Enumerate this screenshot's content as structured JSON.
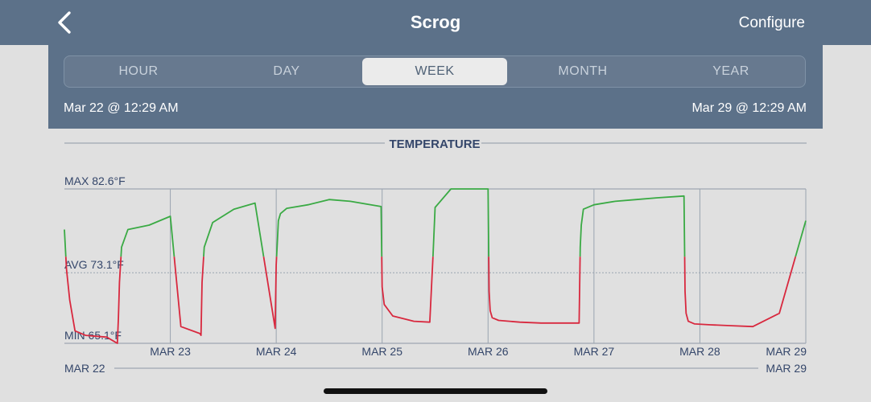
{
  "navbar": {
    "title": "Scrog",
    "configure_label": "Configure",
    "back_icon": "chevron-left-icon"
  },
  "range_tabs": [
    {
      "label": "HOUR",
      "active": false
    },
    {
      "label": "DAY",
      "active": false
    },
    {
      "label": "WEEK",
      "active": true
    },
    {
      "label": "MONTH",
      "active": false
    },
    {
      "label": "YEAR",
      "active": false
    }
  ],
  "range": {
    "start": "Mar 22 @ 12:29 AM",
    "end": "Mar 29 @ 12:29 AM"
  },
  "colors": {
    "header_bg": "#5c7189",
    "above_avg": "#3aaa44",
    "below_avg": "#d8283e",
    "page_bg": "#e0e0e0",
    "label_text": "#34466a"
  },
  "chart_data": {
    "type": "line",
    "title": "TEMPERATURE",
    "max_label": "MAX 82.6°F",
    "avg_label": "AVG 73.1°F",
    "min_label": "MIN 65.1°F",
    "max": 82.6,
    "avg": 73.1,
    "min": 65.1,
    "unit": "°F",
    "day_ticks": [
      "MAR 23",
      "MAR 24",
      "MAR 25",
      "MAR 26",
      "MAR 27",
      "MAR 28",
      "MAR 29"
    ],
    "timeline_start": "MAR 22",
    "timeline_end": "MAR 29",
    "x_days_from_start": [
      0,
      0.02,
      0.05,
      0.1,
      0.2,
      0.4,
      0.5,
      0.51,
      0.52,
      0.54,
      0.6,
      0.8,
      1.0,
      1.1,
      1.28,
      1.29,
      1.3,
      1.32,
      1.4,
      1.6,
      1.8,
      1.99,
      2.0,
      2.01,
      2.02,
      2.04,
      2.1,
      2.3,
      2.5,
      2.7,
      2.99,
      3.0,
      3.02,
      3.1,
      3.3,
      3.45,
      3.48,
      3.5,
      3.65,
      4.0,
      4.01,
      4.02,
      4.04,
      4.1,
      4.3,
      4.5,
      4.86,
      4.87,
      4.88,
      4.9,
      5.0,
      5.2,
      5.4,
      5.6,
      5.85,
      5.86,
      5.87,
      5.89,
      5.95,
      6.1,
      6.3,
      6.5,
      6.75,
      7.0
    ],
    "y_degF": [
      78.0,
      73.5,
      70.0,
      66.5,
      66.0,
      65.8,
      65.1,
      68.0,
      72.0,
      76.0,
      78.0,
      78.5,
      79.5,
      67.0,
      66.2,
      66.0,
      72.0,
      76.0,
      78.8,
      80.3,
      81.0,
      66.8,
      74.0,
      76.5,
      79.0,
      79.8,
      80.4,
      80.8,
      81.4,
      81.2,
      80.6,
      71.5,
      69.5,
      68.2,
      67.6,
      67.5,
      75.0,
      80.5,
      82.6,
      82.6,
      71.0,
      68.8,
      68.0,
      67.7,
      67.5,
      67.4,
      67.4,
      76.0,
      78.5,
      80.3,
      80.8,
      81.2,
      81.4,
      81.6,
      81.8,
      71.0,
      68.5,
      67.6,
      67.3,
      67.2,
      67.1,
      67.0,
      68.5,
      79.0
    ]
  }
}
